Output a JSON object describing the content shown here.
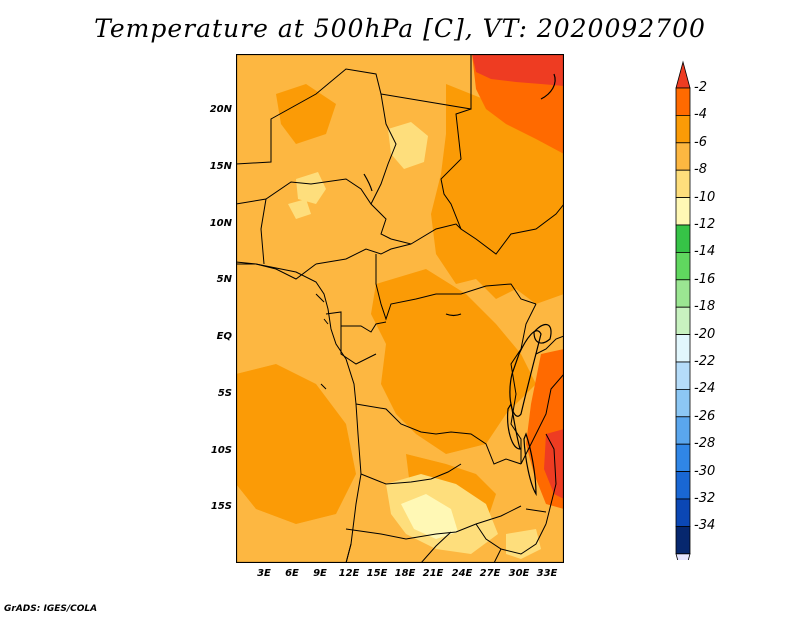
{
  "map": {
    "title": "Temperature at 500hPa [C], VT: 2020092700",
    "footer": "GrADS: IGES/COLA",
    "lat_labels": [
      "20N",
      "15N",
      "10N",
      "5N",
      "EQ",
      "5S",
      "10S",
      "15S"
    ],
    "lon_labels": [
      "3E",
      "6E",
      "9E",
      "12E",
      "15E",
      "18E",
      "21E",
      "24E",
      "27E",
      "30E",
      "33E"
    ]
  },
  "colorbar": {
    "labels": [
      "-2",
      "-4",
      "-6",
      "-8",
      "-10",
      "-12",
      "-14",
      "-16",
      "-18",
      "-20",
      "-22",
      "-24",
      "-26",
      "-28",
      "-30",
      "-32",
      "-34"
    ],
    "colors": [
      "#ee3c22",
      "#ff6a00",
      "#fb9b06",
      "#fdb741",
      "#fede7c",
      "#fff8b5",
      "#36c347",
      "#60d75f",
      "#9be692",
      "#c8f2c0",
      "#e2f7fd",
      "#b5dcf9",
      "#8cc7f4",
      "#5aa6ed",
      "#3086e6",
      "#1967d4",
      "#0b47b4",
      "#06276e",
      "#e6e6ff"
    ]
  }
}
